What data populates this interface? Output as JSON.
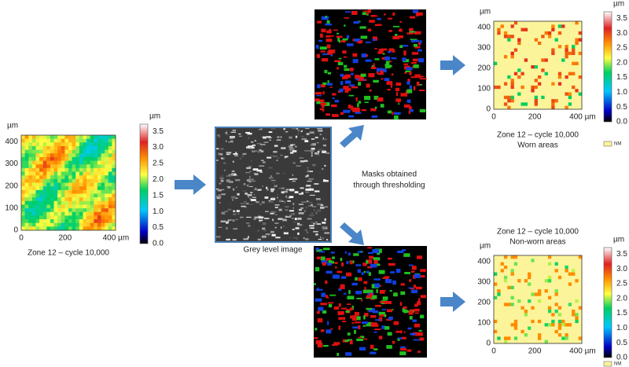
{
  "original": {
    "unit": "µm",
    "yticks": [
      "0",
      "100",
      "200",
      "300",
      "400"
    ],
    "xticks": [
      "0",
      "200",
      "400 µm"
    ],
    "colorbar": {
      "unit": "µm",
      "ticks": [
        "3.5",
        "3.0",
        "2.5",
        "2.0",
        "1.5",
        "1.0",
        "0.5",
        "0.0"
      ]
    },
    "caption": [
      "Zone 12 – cycle 10,000"
    ]
  },
  "grey_image": {
    "caption": "Grey level image"
  },
  "masks_note": [
    "Masks obtained",
    "through thresholding"
  ],
  "worn": {
    "unit": "µm",
    "yticks": [
      "0",
      "100",
      "200",
      "300",
      "400"
    ],
    "xticks": [
      "0",
      "200",
      "400 µm"
    ],
    "colorbar": {
      "unit": "µm",
      "ticks": [
        "3.5",
        "3.0",
        "2.5",
        "2.0",
        "1.5",
        "1.0",
        "0.5",
        "0.0"
      ]
    },
    "legend": "NM",
    "caption": [
      "Zone 12 – cycle 10,000",
      "Worn areas"
    ]
  },
  "non_worn": {
    "unit": "µm",
    "yticks": [
      "0",
      "100",
      "200",
      "300",
      "400"
    ],
    "xticks": [
      "0",
      "200",
      "400 µm"
    ],
    "colorbar": {
      "unit": "µm",
      "ticks": [
        "3.5",
        "3.0",
        "2.5",
        "2.0",
        "1.5",
        "1.0",
        "0.5",
        "0.0"
      ]
    },
    "legend": "NM",
    "caption": [
      "Zone 12 – cycle 10,000",
      "Non-worn areas"
    ]
  }
}
